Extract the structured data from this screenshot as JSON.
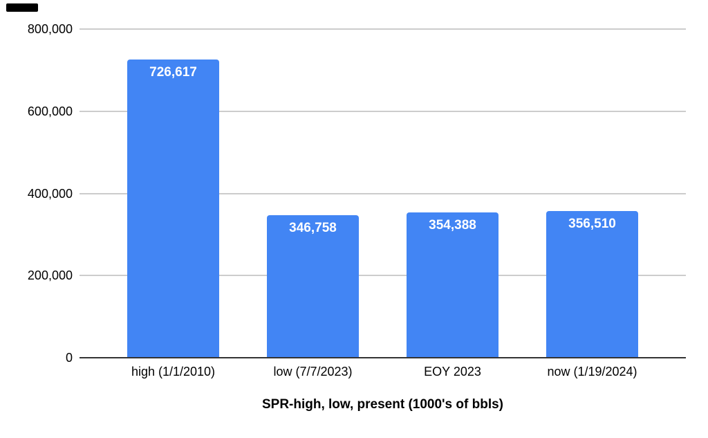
{
  "page": {
    "background": "#ffffff",
    "corner_mark": {
      "color": "#000000"
    }
  },
  "chart_data": {
    "type": "bar",
    "categories": [
      "high (1/1/2010)",
      "low (7/7/2023)",
      "EOY 2023",
      "now (1/19/2024)"
    ],
    "values": [
      726617,
      346758,
      354388,
      356510
    ],
    "value_labels": [
      "726,617",
      "346,758",
      "354,388",
      "356,510"
    ],
    "xlabel": "SPR-high, low, present (1000's of bbls)",
    "ylim": [
      0,
      800000
    ],
    "yticks": [
      800000,
      600000,
      400000,
      200000,
      0
    ],
    "ytick_labels": [
      "800,000",
      "600,000",
      "400,000",
      "200,000",
      "0"
    ],
    "grid": "horizontal",
    "legend_position": "none",
    "colors": {
      "bar": "#4285f4",
      "bar_label": "#ffffff",
      "gridline": "#cccccc",
      "axis_line": "#333333",
      "text": "#000000"
    }
  }
}
